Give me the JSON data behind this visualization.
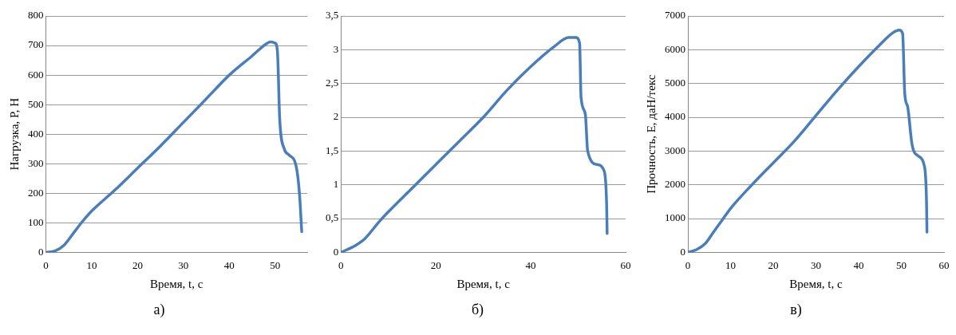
{
  "chart_data": [
    {
      "type": "line",
      "xlabel": "Время, t, с",
      "ylabel": "Нагрузка, P, Н",
      "grid": "y",
      "xlim": [
        0,
        57
      ],
      "xticks": [
        0,
        10,
        20,
        30,
        40,
        50
      ],
      "ylim": [
        0,
        800
      ],
      "yticks": [
        0,
        100,
        200,
        300,
        400,
        500,
        600,
        700,
        800
      ],
      "annotations": [
        "а)"
      ],
      "series": [
        {
          "color": "#4a7ebb",
          "x": [
            0,
            2,
            4,
            6,
            8,
            10,
            15,
            20,
            25,
            30,
            35,
            40,
            45,
            48,
            49,
            50,
            50.5,
            51,
            52,
            53,
            54.6,
            55.3,
            55.8
          ],
          "values": [
            0,
            5,
            25,
            65,
            105,
            140,
            210,
            285,
            360,
            440,
            520,
            600,
            665,
            705,
            712,
            708,
            680,
            450,
            350,
            330,
            290,
            200,
            70
          ]
        }
      ]
    },
    {
      "type": "line",
      "xlabel": "Время, t, с",
      "grid": "y",
      "xlim": [
        0,
        60
      ],
      "xticks": [
        0,
        20,
        40,
        60
      ],
      "ylim": [
        0,
        3.5
      ],
      "yticks": [
        0,
        {
          "value": 0.5,
          "label": "0,5"
        },
        1,
        {
          "value": 1.5,
          "label": "1,5"
        },
        2,
        {
          "value": 2.5,
          "label": "2,5"
        },
        3,
        {
          "value": 3.5,
          "label": "3,5"
        }
      ],
      "annotations": [
        "б)"
      ],
      "series": [
        {
          "color": "#4a7ebb",
          "x": [
            0,
            3,
            5,
            8,
            10,
            15,
            20,
            25,
            30,
            35,
            40,
            45,
            48,
            49.5,
            50.3,
            50.6,
            51.5,
            52,
            54,
            55.5,
            56,
            56.1
          ],
          "values": [
            0,
            0.1,
            0.2,
            0.45,
            0.6,
            0.95,
            1.3,
            1.65,
            2.0,
            2.4,
            2.75,
            3.05,
            3.18,
            3.18,
            3.1,
            2.3,
            2.05,
            1.5,
            1.3,
            1.2,
            0.7,
            0.28
          ]
        }
      ]
    },
    {
      "type": "line",
      "xlabel": "Время, t, с",
      "ylabel": "Прочность, Е, даН/текс",
      "grid": "y",
      "xlim": [
        0,
        60
      ],
      "xticks": [
        0,
        10,
        20,
        30,
        40,
        50,
        60
      ],
      "ylim": [
        0,
        7000
      ],
      "yticks": [
        0,
        1000,
        2000,
        3000,
        4000,
        5000,
        6000,
        7000
      ],
      "annotations": [
        "в)"
      ],
      "series": [
        {
          "color": "#4a7ebb",
          "x": [
            0,
            2,
            4,
            6,
            8,
            10,
            15,
            20,
            25,
            30,
            35,
            40,
            45,
            48,
            49.5,
            50.3,
            50.8,
            51.5,
            52.5,
            54,
            55.3,
            55.9,
            56
          ],
          "values": [
            0,
            80,
            250,
            600,
            950,
            1300,
            2000,
            2650,
            3300,
            4050,
            4800,
            5500,
            6150,
            6500,
            6580,
            6480,
            4700,
            4300,
            3200,
            2850,
            2600,
            1500,
            600
          ]
        }
      ]
    }
  ]
}
